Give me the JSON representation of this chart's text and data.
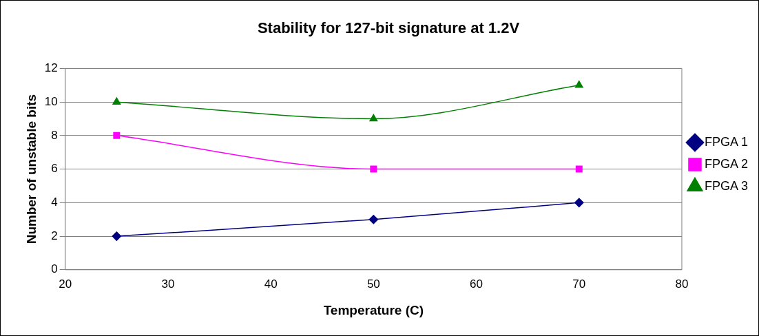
{
  "chart_data": {
    "type": "line",
    "title": "Stability for 127-bit signature at 1.2V",
    "xlabel": "Temperature (C)",
    "ylabel": "Number of unstable bits",
    "x": [
      25,
      50,
      70
    ],
    "series": [
      {
        "name": "FPGA 1",
        "color": "#000080",
        "values": [
          2,
          3,
          4
        ],
        "marker": "diamond"
      },
      {
        "name": "FPGA 2",
        "color": "#ff00ff",
        "values": [
          8,
          6,
          6
        ],
        "marker": "square"
      },
      {
        "name": "FPGA 3",
        "color": "#008000",
        "values": [
          10,
          9,
          11
        ],
        "marker": "triangle"
      }
    ],
    "xlim": [
      20,
      80
    ],
    "xticks": [
      20,
      30,
      40,
      50,
      60,
      70,
      80
    ],
    "ylim": [
      0,
      12
    ],
    "yticks": [
      0,
      2,
      4,
      6,
      8,
      10,
      12
    ],
    "grid": "y",
    "legend": "right"
  }
}
